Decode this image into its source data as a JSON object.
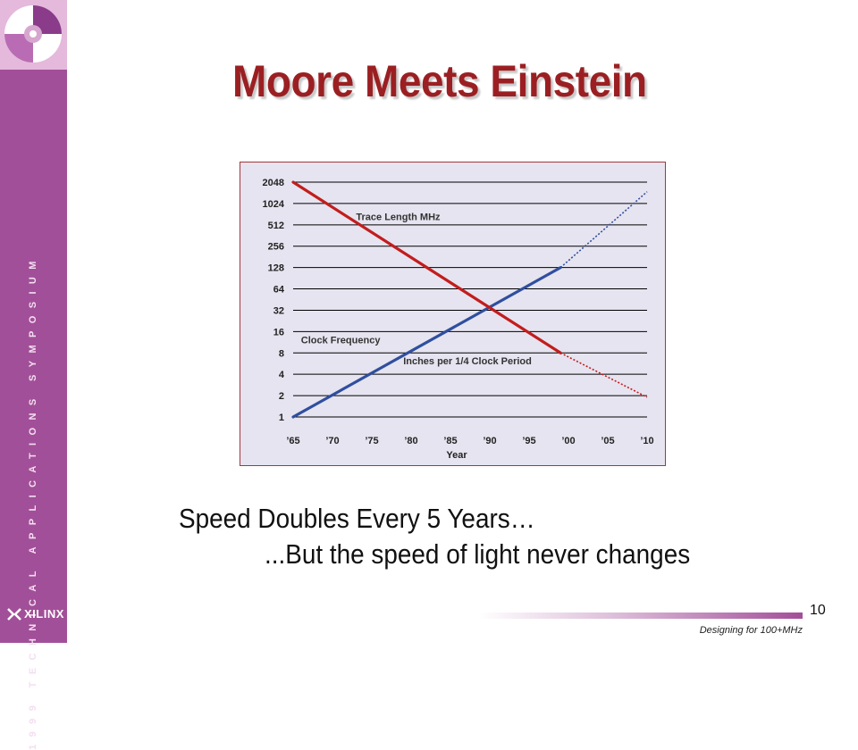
{
  "slide": {
    "title": "Moore Meets Einstein",
    "line1": "Speed Doubles Every 5 Years…",
    "line2": "...But the speed of light never changes",
    "page_number": "10",
    "footer": "Designing for 100+MHz"
  },
  "sidebar": {
    "vertical_text": "1999 TECHNICAL APPLICATIONS SYMPOSIUM",
    "brand": "XILINX",
    "color": "#a24f99"
  },
  "colors": {
    "title": "#9b1f22",
    "clock_series": "#2f4f9e",
    "trace_series": "#c21d1d",
    "chart_bg": "#e6e4f0"
  },
  "chart_data": {
    "type": "line",
    "xlabel": "Year",
    "x_ticks": [
      "’65",
      "’70",
      "’75",
      "’80",
      "’85",
      "’90",
      "’95",
      "’00",
      "’05",
      "’10"
    ],
    "x_values": [
      1965,
      1970,
      1975,
      1980,
      1985,
      1990,
      1995,
      2000,
      2005,
      2010
    ],
    "y_ticks": [
      "1",
      "2",
      "4",
      "8",
      "16",
      "32",
      "64",
      "128",
      "256",
      "512",
      "1024",
      "2048"
    ],
    "y_scale": "log2",
    "ylim": [
      1,
      2048
    ],
    "xlim": [
      1965,
      2010
    ],
    "grid": true,
    "series": [
      {
        "name": "Clock Frequency",
        "color": "#2f4f9e",
        "solid": [
          [
            1965,
            1
          ],
          [
            1999,
            128
          ]
        ],
        "projected": [
          [
            1999,
            128
          ],
          [
            2010,
            1500
          ]
        ]
      },
      {
        "name": "Trace Length MHz",
        "color": "#c21d1d",
        "solid": [
          [
            1965,
            2048
          ],
          [
            1999,
            8
          ]
        ],
        "projected": [
          [
            1999,
            8
          ],
          [
            2010,
            1.9
          ]
        ]
      }
    ],
    "annotations": [
      {
        "text": "Trace Length MHz",
        "x": 1973,
        "y": 600
      },
      {
        "text": "Clock Frequency",
        "x": 1966,
        "y": 11
      },
      {
        "text": "Inches per 1/4  Clock Period",
        "x": 1979,
        "y": 5.5
      }
    ]
  }
}
